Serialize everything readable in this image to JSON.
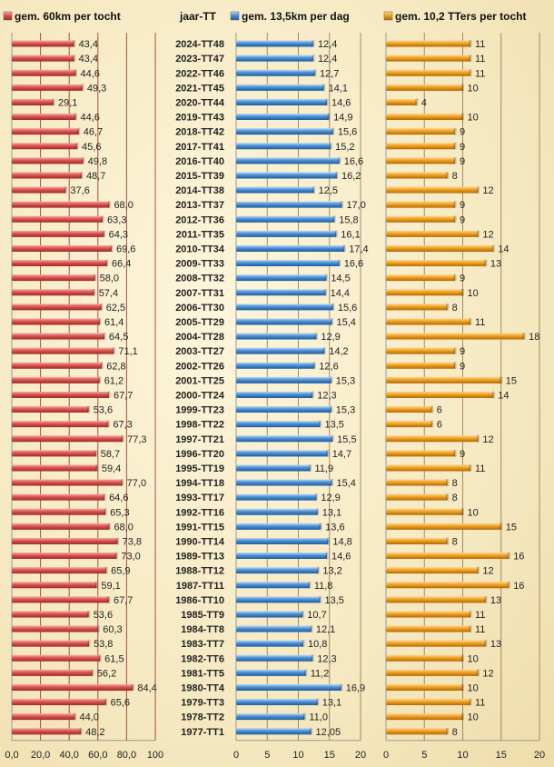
{
  "chart_data": {
    "type": "bar",
    "orientation": "horizontal",
    "title": "jaar-TT",
    "categories": [
      "2024-TT48",
      "2023-TT47",
      "2022-TT46",
      "2021-TT45",
      "2020-TT44",
      "2019-TT43",
      "2018-TT42",
      "2017-TT41",
      "2016-TT40",
      "2015-TT39",
      "2014-TT38",
      "2013-TT37",
      "2012-TT36",
      "2011-TT35",
      "2010-TT34",
      "2009-TT33",
      "2008-TT32",
      "2007-TT31",
      "2006-TT30",
      "2005-TT29",
      "2004-TT28",
      "2003-TT27",
      "2002-TT26",
      "2001-TT25",
      "2000-TT24",
      "1999-TT23",
      "1998-TT22",
      "1997-TT21",
      "1996-TT20",
      "1995-TT19",
      "1994-TT18",
      "1993-TT17",
      "1992-TT16",
      "1991-TT15",
      "1990-TT14",
      "1989-TT13",
      "1988-TT12",
      "1987-TT11",
      "1986-TT10",
      "1985-TT9",
      "1984-TT8",
      "1983-TT7",
      "1982-TT6",
      "1981-TT5",
      "1980-TT4",
      "1979-TT3",
      "1978-TT2",
      "1977-TT1"
    ],
    "series": [
      {
        "name": "gem. 60km per tocht",
        "color": "#d9534f",
        "xlim": [
          0,
          100
        ],
        "ticks": [
          "0,0",
          "20,0",
          "40,0",
          "60,0",
          "80,0",
          "100"
        ],
        "labels": [
          "43,4",
          "43,4",
          "44,6",
          "49,3",
          "29,1",
          "44,6",
          "46,7",
          "45,6",
          "49,8",
          "48,7",
          "37,6",
          "68,0",
          "63,3",
          "64,3",
          "69,6",
          "66,4",
          "58,0",
          "57,4",
          "62,5",
          "61,4",
          "64,5",
          "71,1",
          "62,8",
          "61,2",
          "67,7",
          "53,6",
          "67,3",
          "77,3",
          "58,7",
          "59,4",
          "77,0",
          "64,6",
          "65,3",
          "68,0",
          "73,8",
          "73,0",
          "65,9",
          "59,1",
          "67,7",
          "53,6",
          "60,3",
          "53,8",
          "61,5",
          "56,2",
          "84,4",
          "65,6",
          "44,0",
          "48,2"
        ],
        "values": [
          43.4,
          43.4,
          44.6,
          49.3,
          29.1,
          44.6,
          46.7,
          45.6,
          49.8,
          48.7,
          37.6,
          68.0,
          63.3,
          64.3,
          69.6,
          66.4,
          58.0,
          57.4,
          62.5,
          61.4,
          64.5,
          71.1,
          62.8,
          61.2,
          67.7,
          53.6,
          67.3,
          77.3,
          58.7,
          59.4,
          77.0,
          64.6,
          65.3,
          68.0,
          73.8,
          73.0,
          65.9,
          59.1,
          67.7,
          53.6,
          60.3,
          53.8,
          61.5,
          56.2,
          84.4,
          65.6,
          44.0,
          48.2
        ]
      },
      {
        "name": "gem. 13,5km per dag",
        "color": "#4a8fd4",
        "xlim": [
          0,
          20
        ],
        "ticks": [
          "0",
          "5",
          "10",
          "15",
          "20"
        ],
        "labels": [
          "12,4",
          "12,4",
          "12,7",
          "14,1",
          "14,6",
          "14,9",
          "15,6",
          "15,2",
          "16,6",
          "16,2",
          "12,5",
          "17,0",
          "15,8",
          "16,1",
          "17,4",
          "16,6",
          "14,5",
          "14,4",
          "15,6",
          "15,4",
          "12,9",
          "14,2",
          "12,6",
          "15,3",
          "12,3",
          "15,3",
          "13,5",
          "15,5",
          "14,7",
          "11,9",
          "15,4",
          "12,9",
          "13,1",
          "13,6",
          "14,8",
          "14,6",
          "13,2",
          "11,8",
          "13,5",
          "10,7",
          "12,1",
          "10,8",
          "12,3",
          "11,2",
          "16,9",
          "13,1",
          "11,0",
          "12,05"
        ],
        "values": [
          12.4,
          12.4,
          12.7,
          14.1,
          14.6,
          14.9,
          15.6,
          15.2,
          16.6,
          16.2,
          12.5,
          17.0,
          15.8,
          16.1,
          17.4,
          16.6,
          14.5,
          14.4,
          15.6,
          15.4,
          12.9,
          14.2,
          12.6,
          15.3,
          12.3,
          15.3,
          13.5,
          15.5,
          14.7,
          11.9,
          15.4,
          12.9,
          13.1,
          13.6,
          14.8,
          14.6,
          13.2,
          11.8,
          13.5,
          10.7,
          12.1,
          10.8,
          12.3,
          11.2,
          16.9,
          13.1,
          11.0,
          12.05
        ]
      },
      {
        "name": "gem. 10,2 TTers per tocht",
        "color": "#f0a020",
        "xlim": [
          0,
          20
        ],
        "ticks": [
          "0",
          "5",
          "10",
          "15",
          "20"
        ],
        "labels": [
          "11",
          "11",
          "11",
          "10",
          "4",
          "10",
          "9",
          "9",
          "9",
          "8",
          "12",
          "9",
          "9",
          "12",
          "14",
          "13",
          "9",
          "10",
          "8",
          "11",
          "18",
          "9",
          "9",
          "15",
          "14",
          "6",
          "6",
          "12",
          "9",
          "11",
          "8",
          "8",
          "10",
          "15",
          "8",
          "16",
          "12",
          "16",
          "13",
          "11",
          "11",
          "13",
          "10",
          "12",
          "10",
          "11",
          "10",
          "8"
        ],
        "values": [
          11,
          11,
          11,
          10,
          4,
          10,
          9,
          9,
          9,
          8,
          12,
          9,
          9,
          12,
          14,
          13,
          9,
          10,
          8,
          11,
          18,
          9,
          9,
          15,
          14,
          6,
          6,
          12,
          9,
          11,
          8,
          8,
          10,
          15,
          8,
          16,
          12,
          16,
          13,
          11,
          11,
          13,
          10,
          12,
          10,
          11,
          10,
          8
        ]
      }
    ]
  }
}
